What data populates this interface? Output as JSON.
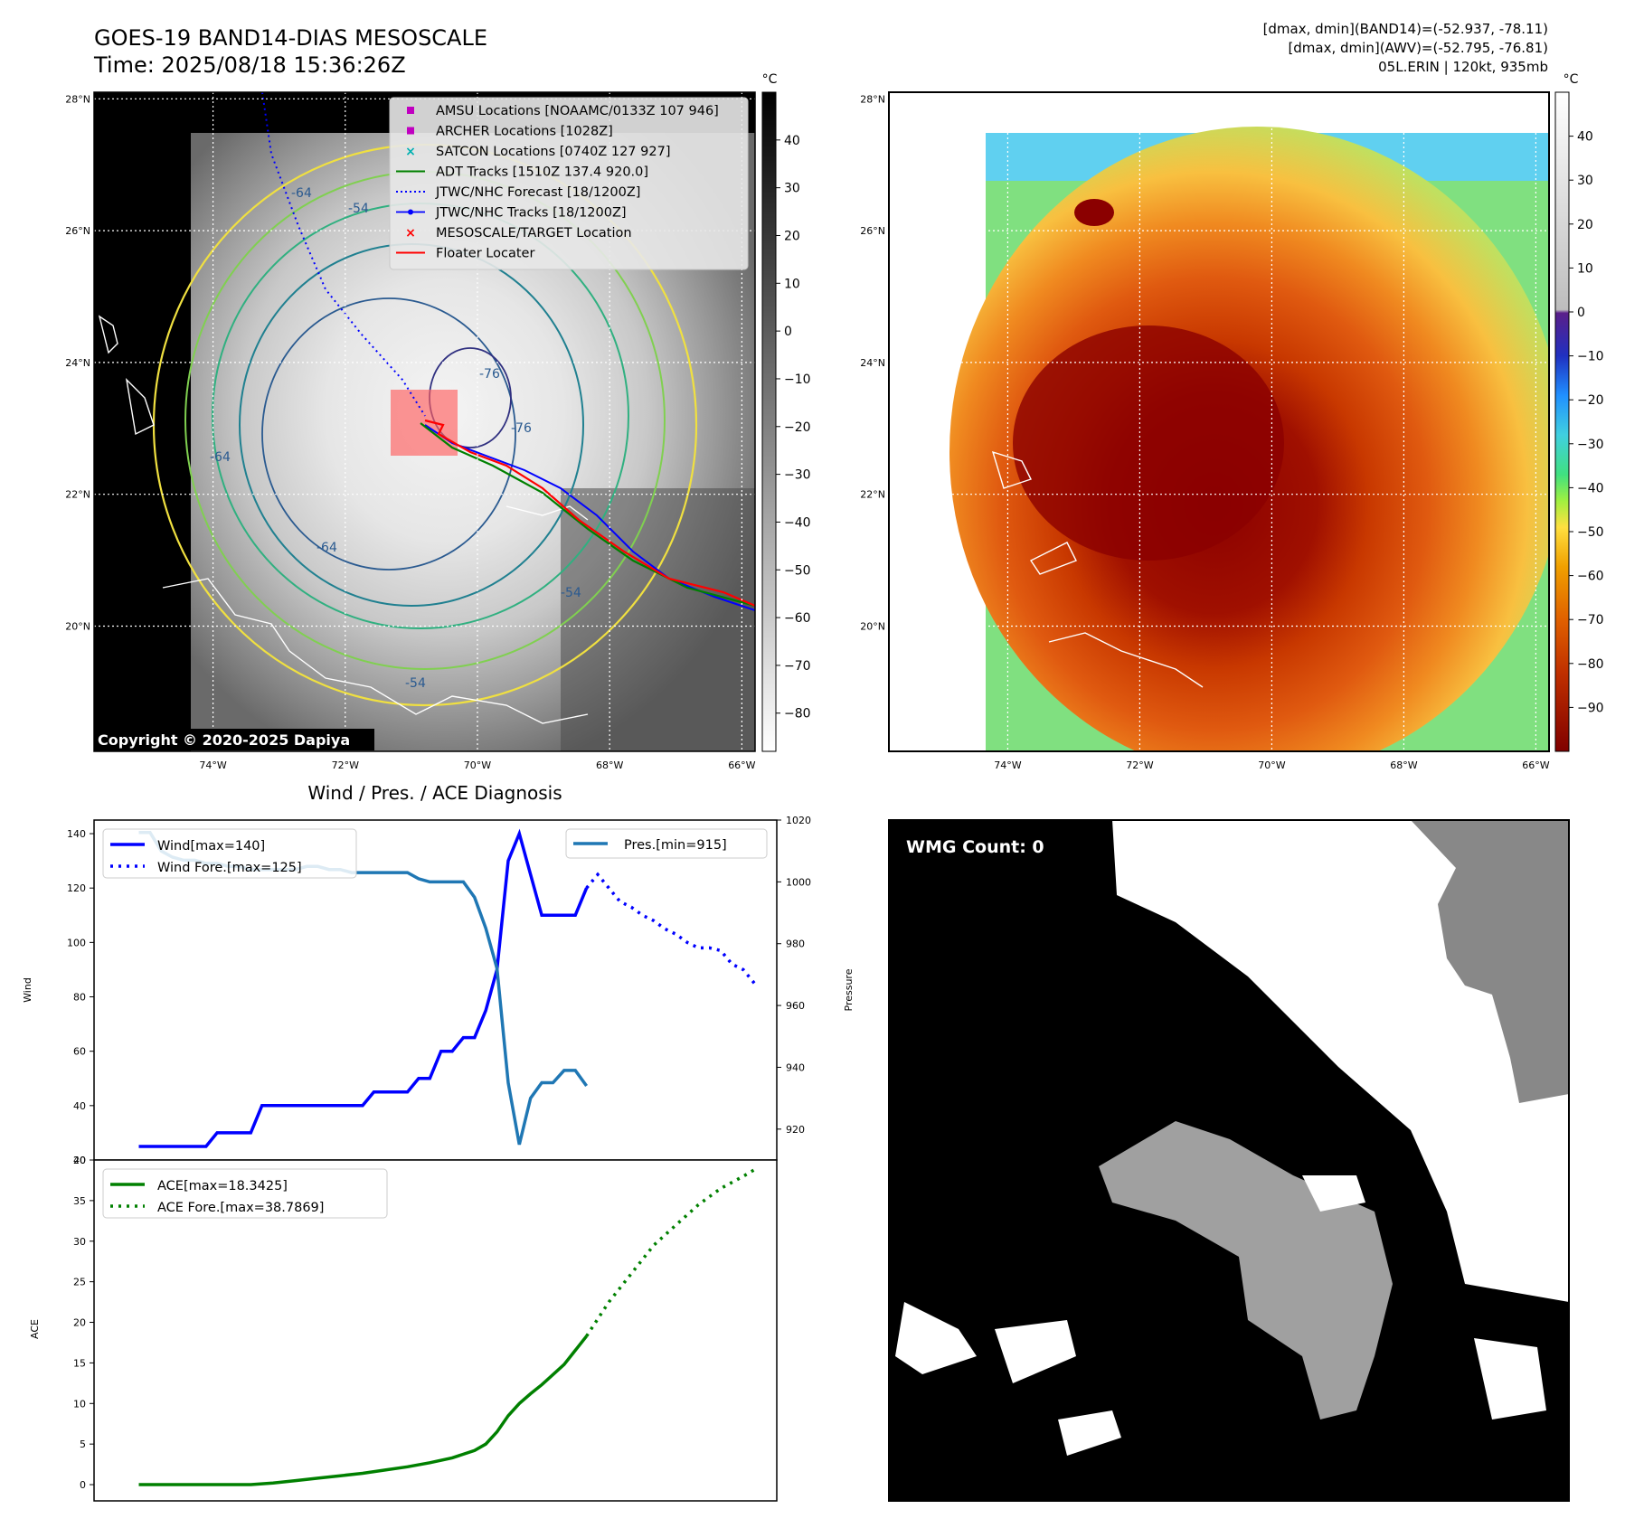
{
  "header": {
    "title": "GOES-19 BAND14-DIAS MESOSCALE",
    "time": "Time: 2025/08/18 15:36:26Z",
    "stats_line1": "[dmax, dmin](BAND14)=(-52.937, -78.11)",
    "stats_line2": "[dmax, dmin](AWV)=(-52.795, -76.81)",
    "stats_line3": "05L.ERIN | 120kt, 935mb"
  },
  "ir_map": {
    "copyright": "Copyright © 2020-2025 Dapiya",
    "lat_labels": [
      "28°N",
      "26°N",
      "24°N",
      "22°N",
      "20°N"
    ],
    "lon_labels": [
      "74°W",
      "72°W",
      "70°W",
      "68°W",
      "66°W"
    ],
    "lat_values": [
      28,
      26,
      24,
      22,
      20
    ],
    "lon_values": [
      -74,
      -72,
      -70,
      -68,
      -66
    ],
    "lat_range": [
      18.1,
      28.1
    ],
    "lon_range": [
      -75.8,
      -65.8
    ],
    "colorbar_unit": "°C",
    "colorbar_ticks": [
      40,
      30,
      20,
      10,
      0,
      -10,
      -20,
      -30,
      -40,
      -50,
      -60,
      -70,
      -80
    ],
    "colorbar_range": [
      -88,
      50
    ],
    "contour_labels": [
      "-64",
      "-54",
      "-76",
      "-76",
      "-64",
      "-64",
      "-54",
      "-54"
    ],
    "legend": [
      {
        "label": "AMSU Locations [NOAAMC/0133Z 107 946]",
        "marker": "square",
        "color": "#c000c0"
      },
      {
        "label": "ARCHER Locations [1028Z]",
        "marker": "square",
        "color": "#c000c0"
      },
      {
        "label": "SATCON Locations [0740Z 127 927]",
        "marker": "x",
        "color": "#00b0b0"
      },
      {
        "label": "ADT Tracks [1510Z 137.4 920.0]",
        "marker": "line",
        "color": "#008000"
      },
      {
        "label": "JTWC/NHC Forecast [18/1200Z]",
        "marker": "dotted",
        "color": "#0000ff"
      },
      {
        "label": "JTWC/NHC Tracks [18/1200Z]",
        "marker": "line-dot",
        "color": "#0000ff"
      },
      {
        "label": "MESOSCALE/TARGET Location",
        "marker": "x",
        "color": "#ff0000"
      },
      {
        "label": "Floater Locater",
        "marker": "line",
        "color": "#ff0000"
      }
    ]
  },
  "color_map": {
    "lat_labels": [
      "28°N",
      "26°N",
      "24°N",
      "22°N",
      "20°N"
    ],
    "lon_labels": [
      "74°W",
      "72°W",
      "70°W",
      "68°W",
      "66°W"
    ],
    "colorbar_unit": "°C",
    "colorbar_ticks": [
      40,
      30,
      20,
      10,
      0,
      -10,
      -20,
      -30,
      -40,
      -50,
      -60,
      -70,
      -80,
      -90
    ],
    "colorbar_range": [
      -100,
      50
    ]
  },
  "chart_data": [
    {
      "type": "line",
      "title": "Wind / Pres. / ACE Diagnosis",
      "ylabel": "Wind",
      "ylabel_right": "Pressure",
      "ylim": [
        20,
        145
      ],
      "ylim_right": [
        910,
        1020
      ],
      "yticks": [
        20,
        40,
        60,
        80,
        100,
        120,
        140
      ],
      "yticks_right": [
        920,
        940,
        960,
        980,
        1000,
        1020
      ],
      "series": [
        {
          "name": "Wind[max=140]",
          "style": "solid",
          "color": "#0000ff",
          "x": [
            0,
            1,
            2,
            3,
            4,
            5,
            6,
            7,
            8,
            9,
            10,
            11,
            12,
            13,
            14,
            15,
            16,
            17,
            18,
            19,
            20,
            21,
            22,
            23,
            24,
            25,
            26,
            27,
            28,
            29,
            30,
            31,
            32,
            33,
            34,
            35,
            36,
            37,
            38,
            39,
            40
          ],
          "values": [
            25,
            25,
            25,
            25,
            25,
            25,
            25,
            30,
            30,
            30,
            30,
            40,
            40,
            40,
            40,
            40,
            40,
            40,
            40,
            40,
            40,
            45,
            45,
            45,
            45,
            50,
            50,
            60,
            60,
            65,
            65,
            75,
            90,
            130,
            140,
            125,
            110,
            110,
            110,
            110,
            120
          ]
        },
        {
          "name": "Wind Fore.[max=125]",
          "style": "dotted",
          "color": "#0000ff",
          "x": [
            40,
            41,
            42,
            43,
            44,
            45,
            46,
            47,
            48,
            49,
            50,
            51,
            52,
            53,
            54,
            55
          ],
          "values": [
            120,
            125,
            120,
            115,
            113,
            110,
            108,
            105,
            103,
            100,
            98,
            98,
            97,
            92,
            90,
            85
          ]
        },
        {
          "name": "Pres.[min=915]",
          "style": "solid",
          "color": "#1f77b4",
          "axis": "right",
          "x": [
            0,
            1,
            2,
            3,
            4,
            5,
            6,
            7,
            8,
            9,
            10,
            11,
            12,
            13,
            14,
            15,
            16,
            17,
            18,
            19,
            20,
            21,
            22,
            23,
            24,
            25,
            26,
            27,
            28,
            29,
            30,
            31,
            32,
            33,
            34,
            35,
            36,
            37,
            38,
            39,
            40
          ],
          "values": [
            1016,
            1016,
            1010,
            1008,
            1007,
            1007,
            1006,
            1006,
            1005,
            1005,
            1004,
            1004,
            1004,
            1004,
            1004,
            1005,
            1005,
            1004,
            1004,
            1003,
            1003,
            1003,
            1003,
            1003,
            1003,
            1001,
            1000,
            1000,
            1000,
            1000,
            995,
            985,
            972,
            935,
            915,
            930,
            935,
            935,
            939,
            939,
            934
          ]
        }
      ]
    },
    {
      "type": "line",
      "ylabel": "ACE",
      "ylim": [
        -2,
        40
      ],
      "yticks": [
        0,
        5,
        10,
        15,
        20,
        25,
        30,
        35,
        40
      ],
      "series": [
        {
          "name": "ACE[max=18.3425]",
          "style": "solid",
          "color": "#008000",
          "x": [
            0,
            2,
            4,
            6,
            8,
            10,
            12,
            14,
            16,
            18,
            20,
            22,
            24,
            26,
            28,
            30,
            31,
            32,
            33,
            34,
            35,
            36,
            38,
            40
          ],
          "values": [
            0,
            0,
            0,
            0,
            0,
            0,
            0.2,
            0.5,
            0.8,
            1.1,
            1.4,
            1.8,
            2.2,
            2.7,
            3.3,
            4.2,
            5.0,
            6.5,
            8.5,
            10.0,
            11.2,
            12.3,
            14.8,
            18.3
          ]
        },
        {
          "name": "ACE Fore.[max=38.7869]",
          "style": "dotted",
          "color": "#008000",
          "x": [
            40,
            42,
            44,
            46,
            48,
            50,
            52,
            54,
            55
          ],
          "values": [
            18.3,
            22.5,
            26.0,
            29.5,
            32.0,
            34.5,
            36.5,
            38.0,
            38.8
          ]
        }
      ]
    }
  ],
  "wmg_panel": {
    "label": "WMG Count: 0"
  }
}
